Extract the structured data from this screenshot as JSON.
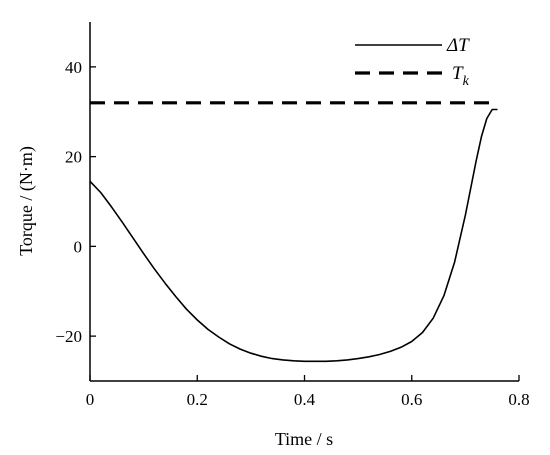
{
  "chart_data": {
    "type": "line",
    "title": "",
    "xlabel": "Time / s",
    "ylabel": "Torque / (N·m)",
    "xlim": [
      0,
      0.8
    ],
    "ylim": [
      -30,
      50
    ],
    "xticks": [
      0,
      0.2,
      0.4,
      0.6,
      0.8
    ],
    "xtick_labels": [
      "0",
      "0.2",
      "0.4",
      "0.6",
      "0.8"
    ],
    "yticks": [
      -20,
      0,
      20,
      40
    ],
    "ytick_labels": [
      "−20",
      "0",
      "20",
      "40"
    ],
    "grid": false,
    "legend_position": "top-right",
    "series": [
      {
        "name": "ΔT",
        "style": "solid",
        "color": "#000000",
        "x": [
          0,
          0.02,
          0.04,
          0.06,
          0.08,
          0.1,
          0.12,
          0.14,
          0.16,
          0.18,
          0.2,
          0.22,
          0.24,
          0.26,
          0.28,
          0.3,
          0.32,
          0.34,
          0.36,
          0.38,
          0.4,
          0.42,
          0.44,
          0.46,
          0.48,
          0.5,
          0.52,
          0.54,
          0.56,
          0.58,
          0.6,
          0.62,
          0.64,
          0.66,
          0.68,
          0.7,
          0.72,
          0.73,
          0.74,
          0.75,
          0.76
        ],
        "y": [
          14.5,
          12.0,
          8.8,
          5.4,
          1.9,
          -1.6,
          -5.0,
          -8.2,
          -11.2,
          -14.0,
          -16.4,
          -18.5,
          -20.2,
          -21.7,
          -22.9,
          -23.8,
          -24.5,
          -25.0,
          -25.3,
          -25.5,
          -25.6,
          -25.6,
          -25.6,
          -25.5,
          -25.3,
          -25.0,
          -24.6,
          -24.1,
          -23.4,
          -22.5,
          -21.2,
          -19.2,
          -16.0,
          -11.0,
          -3.5,
          7.0,
          19.0,
          24.5,
          28.5,
          30.5,
          30.5
        ]
      },
      {
        "name": "T",
        "name_subscript": "k",
        "style": "dashed",
        "color": "#000000",
        "x": [
          0,
          0.76
        ],
        "y": [
          32,
          32
        ]
      }
    ],
    "legend": [
      {
        "label": "ΔT",
        "style": "solid"
      },
      {
        "label": "T",
        "subscript": "k",
        "style": "dashed"
      }
    ]
  }
}
